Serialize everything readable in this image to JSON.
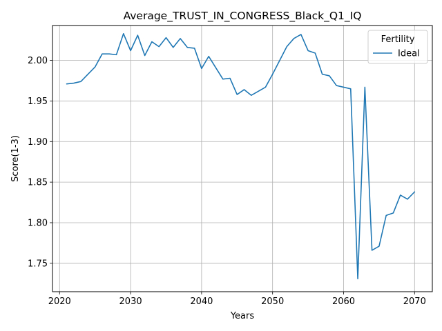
{
  "chart_data": {
    "type": "line",
    "title": "Average_TRUST_IN_CONGRESS_Black_Q1_IQ",
    "xlabel": "Years",
    "ylabel": "Score(1-3)",
    "xlim": [
      2019,
      2072.5
    ],
    "ylim": [
      1.715,
      2.043
    ],
    "x_ticks": [
      2020,
      2030,
      2040,
      2050,
      2060,
      2070
    ],
    "y_ticks": [
      1.75,
      1.8,
      1.85,
      1.9,
      1.95,
      2.0
    ],
    "y_tick_labels": [
      "1.75",
      "1.80",
      "1.85",
      "1.90",
      "1.95",
      "2.00"
    ],
    "grid": true,
    "legend": {
      "title": "Fertility",
      "placement": "top-right"
    },
    "colors": {
      "series": "#1f77b4",
      "grid": "#b0b0b0"
    },
    "x": [
      2021,
      2022,
      2023,
      2024,
      2025,
      2026,
      2027,
      2028,
      2029,
      2030,
      2031,
      2032,
      2033,
      2034,
      2035,
      2036,
      2037,
      2038,
      2039,
      2040,
      2041,
      2042,
      2043,
      2044,
      2045,
      2046,
      2047,
      2048,
      2049,
      2050,
      2051,
      2052,
      2053,
      2054,
      2055,
      2056,
      2057,
      2058,
      2059,
      2060,
      2061,
      2062,
      2063,
      2064,
      2065,
      2066,
      2067,
      2068,
      2069,
      2070
    ],
    "series": [
      {
        "name": "Ideal",
        "values": [
          1.971,
          1.972,
          1.974,
          1.983,
          1.992,
          2.008,
          2.008,
          2.007,
          2.033,
          2.012,
          2.031,
          2.006,
          2.023,
          2.017,
          2.028,
          2.016,
          2.027,
          2.016,
          2.015,
          1.99,
          2.005,
          1.991,
          1.977,
          1.978,
          1.958,
          1.964,
          1.957,
          1.962,
          1.967,
          1.983,
          2.0,
          2.017,
          2.027,
          2.032,
          2.012,
          2.009,
          1.983,
          1.981,
          1.969,
          1.967,
          1.965,
          1.731,
          1.967,
          1.766,
          1.771,
          1.809,
          1.812,
          1.834,
          1.829,
          1.838
        ]
      }
    ]
  }
}
